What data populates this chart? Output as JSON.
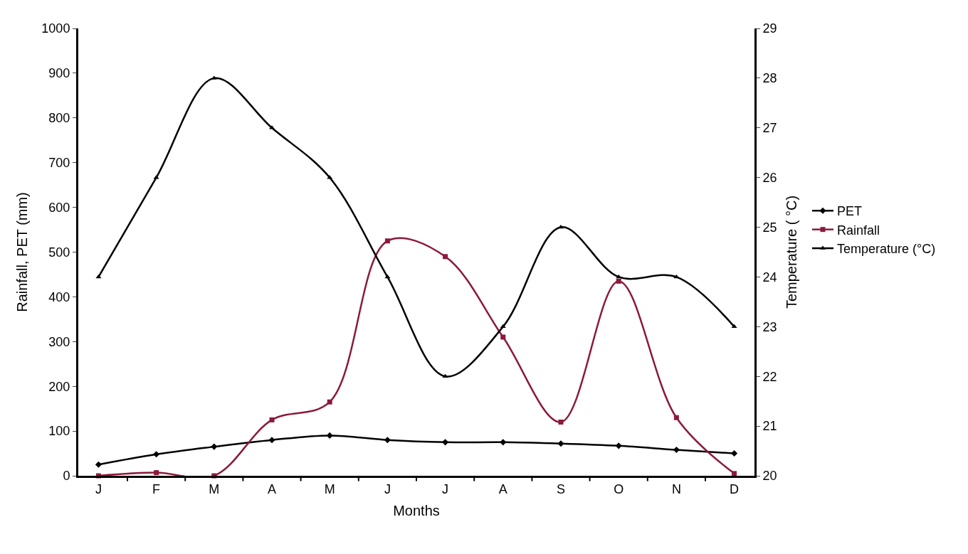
{
  "chart_data": {
    "type": "line",
    "xlabel": "Months",
    "ylabel": "Rainfall, PET (mm)",
    "y2label": "Temperature ( °C)",
    "categories": [
      "J",
      "F",
      "M",
      "A",
      "M",
      "J",
      "J",
      "A",
      "S",
      "O",
      "N",
      "D"
    ],
    "series": [
      {
        "name": "PET",
        "color": "#000000",
        "marker": "diamond",
        "values": [
          25,
          48,
          65,
          80,
          90,
          80,
          75,
          75,
          72,
          67,
          58,
          50
        ]
      },
      {
        "name": "Rainfall",
        "color": "#8b1a3a",
        "marker": "square",
        "values": [
          0,
          7,
          0,
          125,
          165,
          525,
          490,
          310,
          120,
          435,
          130,
          5
        ]
      },
      {
        "name": "Temperature (°C)",
        "color": "#000000",
        "marker": "triangle",
        "axis": "y2",
        "values": [
          24,
          26,
          28,
          27,
          26,
          24,
          22,
          23,
          25,
          24,
          24,
          23
        ]
      }
    ],
    "ylim": [
      0,
      1000
    ],
    "yticks": [
      0,
      100,
      200,
      300,
      400,
      500,
      600,
      700,
      800,
      900,
      1000
    ],
    "y2lim": [
      20,
      29
    ],
    "y2ticks": [
      20,
      21,
      22,
      23,
      24,
      25,
      26,
      27,
      28,
      29
    ],
    "legend": "right"
  }
}
